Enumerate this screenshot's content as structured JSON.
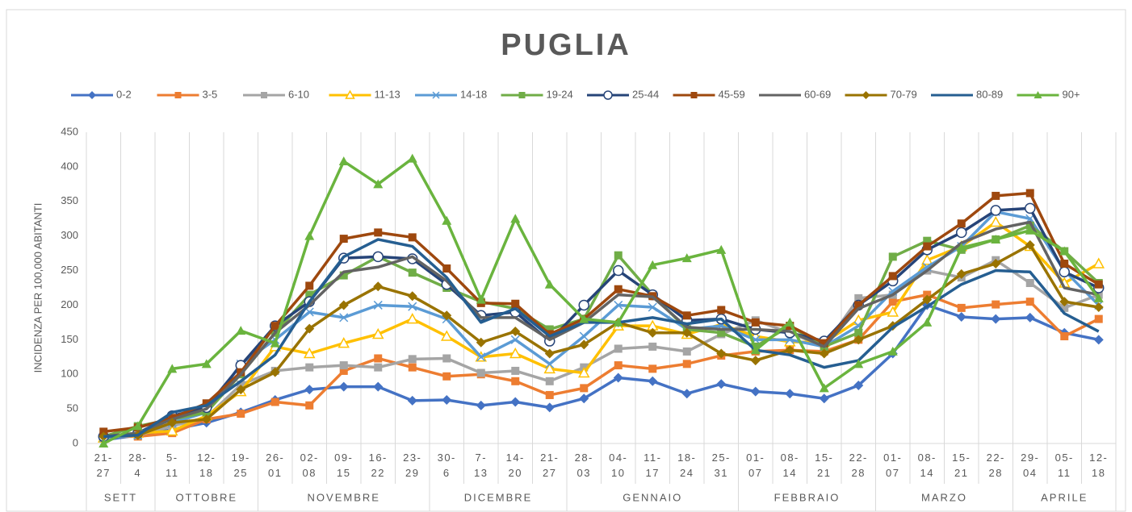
{
  "chart_data": {
    "type": "line",
    "title": "PUGLIA",
    "y_label": "INCIDENZA PER 100,000 ABITANTI",
    "categories": [
      "21-27",
      "28-4",
      "5-11",
      "12-18",
      "19-25",
      "26-01",
      "02-08",
      "09-15",
      "16-22",
      "23-29",
      "30-6",
      "7-13",
      "14-20",
      "21-27",
      "28-03",
      "04-10",
      "11-17",
      "18-24",
      "25-31",
      "01-07",
      "08-14",
      "15-21",
      "22-28",
      "01-07",
      "08-14",
      "15-21",
      "22-28",
      "29-04",
      "05-11",
      "12-18"
    ],
    "months": [
      "SETT",
      null,
      "OTTOBRE",
      null,
      null,
      "NOVEMBRE",
      null,
      null,
      null,
      null,
      "DICEMBRE",
      null,
      null,
      null,
      "GENNAIO",
      null,
      null,
      null,
      null,
      "FEBBRAIO",
      null,
      null,
      null,
      "MARZO",
      null,
      null,
      null,
      "APRILE",
      null,
      null
    ],
    "ylim": [
      0,
      450
    ],
    "yticks": [
      0,
      50,
      100,
      150,
      200,
      250,
      300,
      350,
      400,
      450
    ],
    "vertical_grid": true,
    "series": [
      {
        "name": "0-2",
        "color": "#4472C4",
        "marker": "diamond",
        "values": [
          5,
          12,
          20,
          30,
          45,
          63,
          78,
          82,
          82,
          62,
          63,
          55,
          60,
          52,
          65,
          95,
          90,
          72,
          86,
          75,
          72,
          65,
          84,
          130,
          200,
          183,
          180,
          182,
          160,
          150
        ]
      },
      {
        "name": "3-5",
        "color": "#ED7D31",
        "marker": "square",
        "values": [
          10,
          10,
          15,
          35,
          43,
          60,
          55,
          105,
          123,
          110,
          97,
          100,
          90,
          70,
          80,
          113,
          108,
          115,
          127,
          133,
          135,
          133,
          150,
          205,
          215,
          196,
          201,
          205,
          155,
          180
        ]
      },
      {
        "name": "6-10",
        "color": "#A5A5A5",
        "marker": "square",
        "values": [
          8,
          12,
          25,
          38,
          85,
          105,
          110,
          113,
          110,
          122,
          123,
          102,
          105,
          90,
          110,
          137,
          140,
          133,
          158,
          178,
          160,
          140,
          210,
          215,
          250,
          240,
          265,
          232,
          196,
          215
        ]
      },
      {
        "name": "11-13",
        "color": "#FFC000",
        "marker": "triangle-open",
        "values": [
          8,
          15,
          18,
          40,
          75,
          140,
          130,
          145,
          158,
          180,
          155,
          125,
          130,
          108,
          102,
          170,
          170,
          158,
          172,
          155,
          147,
          146,
          178,
          190,
          265,
          285,
          320,
          285,
          232,
          260
        ]
      },
      {
        "name": "14-18",
        "color": "#5B9BD5",
        "marker": "x",
        "values": [
          8,
          12,
          30,
          45,
          115,
          150,
          190,
          182,
          200,
          198,
          180,
          125,
          150,
          115,
          155,
          200,
          197,
          165,
          170,
          150,
          150,
          140,
          170,
          220,
          255,
          285,
          335,
          325,
          250,
          200
        ]
      },
      {
        "name": "19-24",
        "color": "#70AD47",
        "marker": "square",
        "values": [
          10,
          25,
          35,
          45,
          100,
          160,
          215,
          243,
          270,
          247,
          225,
          205,
          195,
          165,
          180,
          272,
          215,
          165,
          160,
          140,
          170,
          140,
          160,
          270,
          293,
          280,
          295,
          315,
          278,
          232
        ]
      },
      {
        "name": "25-44",
        "color": "#264478",
        "marker": "circle-open",
        "values": [
          10,
          15,
          40,
          52,
          113,
          170,
          205,
          268,
          270,
          267,
          230,
          185,
          190,
          148,
          200,
          250,
          215,
          178,
          180,
          165,
          160,
          148,
          200,
          235,
          280,
          305,
          337,
          340,
          248,
          225
        ]
      },
      {
        "name": "45-59",
        "color": "#9E480E",
        "marker": "square",
        "values": [
          17,
          23,
          37,
          58,
          103,
          170,
          228,
          296,
          305,
          298,
          253,
          203,
          202,
          158,
          180,
          223,
          213,
          185,
          193,
          175,
          170,
          145,
          200,
          242,
          285,
          318,
          358,
          362,
          260,
          230
        ]
      },
      {
        "name": "60-69",
        "color": "#636363",
        "marker": "none",
        "values": [
          10,
          15,
          35,
          50,
          100,
          160,
          200,
          248,
          255,
          270,
          235,
          182,
          182,
          150,
          175,
          215,
          212,
          168,
          165,
          165,
          162,
          140,
          195,
          215,
          250,
          290,
          310,
          320,
          225,
          215
        ]
      },
      {
        "name": "70-79",
        "color": "#997300",
        "marker": "diamond",
        "values": [
          10,
          12,
          30,
          35,
          78,
          103,
          166,
          200,
          227,
          213,
          185,
          146,
          162,
          130,
          143,
          175,
          160,
          160,
          130,
          120,
          135,
          130,
          150,
          170,
          208,
          245,
          260,
          287,
          205,
          197
        ]
      },
      {
        "name": "80-89",
        "color": "#255E91",
        "marker": "none",
        "values": [
          10,
          12,
          45,
          55,
          90,
          128,
          205,
          270,
          295,
          285,
          240,
          175,
          195,
          155,
          175,
          175,
          182,
          173,
          180,
          135,
          128,
          110,
          120,
          168,
          198,
          230,
          250,
          248,
          188,
          162
        ]
      },
      {
        "name": "90+",
        "color": "#6AB43E",
        "marker": "triangle",
        "values": [
          0,
          25,
          108,
          115,
          163,
          145,
          300,
          408,
          375,
          412,
          322,
          208,
          325,
          230,
          180,
          175,
          258,
          268,
          280,
          135,
          175,
          80,
          115,
          133,
          175,
          283,
          295,
          308,
          278,
          210
        ]
      }
    ]
  }
}
